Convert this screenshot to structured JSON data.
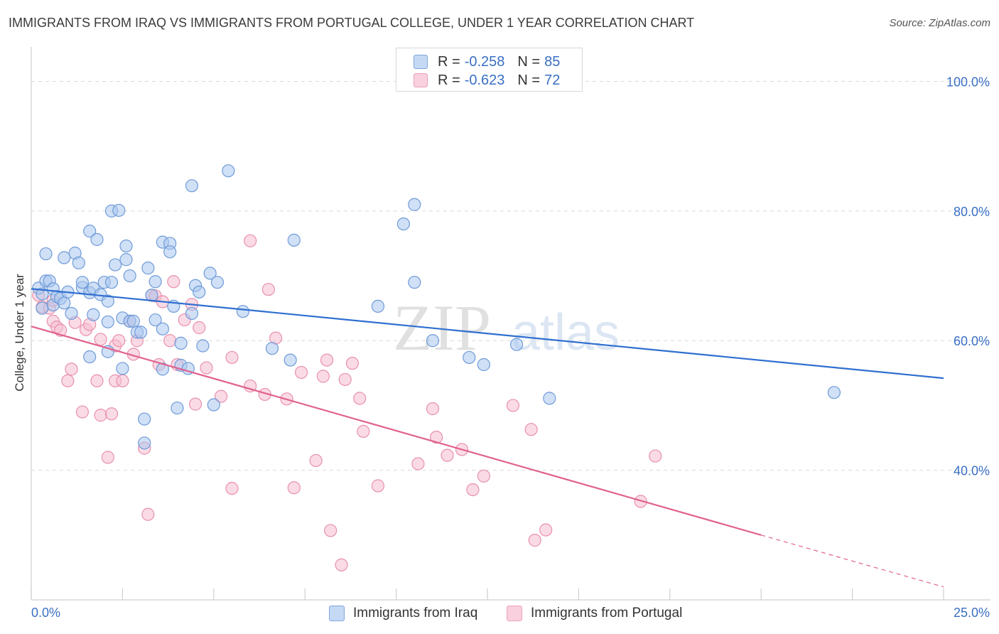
{
  "title": "IMMIGRANTS FROM IRAQ VS IMMIGRANTS FROM PORTUGAL COLLEGE, UNDER 1 YEAR CORRELATION CHART",
  "source": "Source: ZipAtlas.com",
  "watermark": {
    "zip": "ZIP",
    "atlas": "atlas"
  },
  "legend_top": [
    {
      "r_label": "R =",
      "r_value": "-0.258",
      "n_label": "N =",
      "n_value": "85"
    },
    {
      "r_label": "R =",
      "r_value": "-0.623",
      "n_label": "N =",
      "n_value": "72"
    }
  ],
  "colors": {
    "iraq_fill": "#a9c6ef",
    "iraq_stroke": "#6f9bd8",
    "iraq_line": "#2f6fd0",
    "portugal_fill": "#f5bdd0",
    "portugal_stroke": "#e890ad",
    "portugal_line": "#e0628f",
    "tick_label": "#3a6fc4",
    "grid": "#d9d9d9"
  },
  "chart_data": {
    "type": "scatter",
    "title": "IMMIGRANTS FROM IRAQ VS IMMIGRANTS FROM PORTUGAL COLLEGE, UNDER 1 YEAR CORRELATION CHART",
    "xlabel": "",
    "ylabel": "College, Under 1 year",
    "xlim": [
      0,
      25
    ],
    "ylim": [
      20,
      104
    ],
    "x_tick_labels": [
      "0.0%",
      "25.0%"
    ],
    "y_ticks": [
      40,
      60,
      80,
      100
    ],
    "y_tick_labels": [
      "40.0%",
      "60.0%",
      "80.0%",
      "100.0%"
    ],
    "grid": true,
    "legend_position": "top-center",
    "series": [
      {
        "name": "Immigrants from Iraq",
        "r": -0.258,
        "n": 85,
        "trend": {
          "x": [
            0,
            25
          ],
          "y": [
            68.0,
            54.2
          ]
        },
        "points": [
          [
            0.2,
            68.1
          ],
          [
            0.3,
            67.2
          ],
          [
            0.3,
            65.0
          ],
          [
            0.4,
            69.2
          ],
          [
            0.4,
            73.4
          ],
          [
            0.5,
            69.2
          ],
          [
            0.6,
            68.0
          ],
          [
            0.6,
            65.5
          ],
          [
            0.7,
            66.8
          ],
          [
            0.8,
            66.5
          ],
          [
            0.9,
            65.8
          ],
          [
            0.9,
            72.8
          ],
          [
            1.0,
            67.5
          ],
          [
            1.1,
            64.2
          ],
          [
            1.2,
            73.5
          ],
          [
            1.3,
            72.0
          ],
          [
            1.4,
            68.2
          ],
          [
            1.4,
            69.0
          ],
          [
            1.6,
            67.4
          ],
          [
            1.6,
            57.5
          ],
          [
            1.6,
            76.9
          ],
          [
            1.7,
            64.0
          ],
          [
            1.7,
            68.1
          ],
          [
            1.8,
            75.6
          ],
          [
            1.9,
            67.1
          ],
          [
            2.0,
            69.0
          ],
          [
            2.1,
            58.3
          ],
          [
            2.1,
            66.1
          ],
          [
            2.1,
            62.9
          ],
          [
            2.2,
            69.0
          ],
          [
            2.2,
            80.0
          ],
          [
            2.3,
            71.7
          ],
          [
            2.4,
            80.1
          ],
          [
            2.5,
            63.5
          ],
          [
            2.5,
            55.7
          ],
          [
            2.6,
            72.5
          ],
          [
            2.6,
            74.6
          ],
          [
            2.7,
            63.0
          ],
          [
            2.7,
            70.0
          ],
          [
            2.8,
            63.0
          ],
          [
            2.9,
            61.3
          ],
          [
            3.0,
            61.3
          ],
          [
            3.1,
            47.9
          ],
          [
            3.1,
            44.2
          ],
          [
            3.2,
            71.2
          ],
          [
            3.3,
            67.0
          ],
          [
            3.4,
            69.1
          ],
          [
            3.4,
            63.2
          ],
          [
            3.6,
            61.8
          ],
          [
            3.6,
            55.6
          ],
          [
            3.6,
            75.2
          ],
          [
            3.8,
            75.0
          ],
          [
            3.8,
            73.7
          ],
          [
            3.9,
            65.3
          ],
          [
            4.0,
            49.6
          ],
          [
            4.1,
            59.6
          ],
          [
            4.1,
            56.2
          ],
          [
            4.3,
            55.7
          ],
          [
            4.4,
            64.2
          ],
          [
            4.4,
            83.9
          ],
          [
            4.5,
            68.5
          ],
          [
            4.6,
            67.5
          ],
          [
            4.7,
            59.2
          ],
          [
            4.9,
            70.4
          ],
          [
            5.0,
            50.1
          ],
          [
            5.1,
            69.0
          ],
          [
            5.4,
            86.2
          ],
          [
            5.8,
            64.5
          ],
          [
            6.6,
            58.8
          ],
          [
            7.1,
            57.0
          ],
          [
            7.2,
            75.5
          ],
          [
            9.5,
            65.3
          ],
          [
            10.2,
            78.0
          ],
          [
            10.5,
            81.0
          ],
          [
            10.5,
            69.0
          ],
          [
            11.0,
            60.0
          ],
          [
            12.0,
            57.4
          ],
          [
            12.4,
            56.3
          ],
          [
            13.3,
            59.4
          ],
          [
            14.2,
            51.1
          ],
          [
            22.0,
            52.0
          ]
        ]
      },
      {
        "name": "Immigrants from Portugal",
        "r": -0.623,
        "n": 72,
        "trend": {
          "x": [
            0,
            20
          ],
          "y": [
            62.2,
            30.0
          ]
        },
        "trend_extension": {
          "x": [
            20,
            25
          ],
          "y": [
            30.0,
            22.0
          ]
        },
        "points": [
          [
            0.2,
            67.0
          ],
          [
            0.3,
            65.2
          ],
          [
            0.5,
            65.0
          ],
          [
            0.6,
            66.2
          ],
          [
            0.6,
            63.0
          ],
          [
            0.7,
            62.1
          ],
          [
            0.8,
            61.6
          ],
          [
            1.0,
            53.8
          ],
          [
            1.1,
            55.6
          ],
          [
            1.2,
            62.8
          ],
          [
            1.4,
            49.0
          ],
          [
            1.5,
            61.7
          ],
          [
            1.6,
            62.5
          ],
          [
            1.8,
            53.8
          ],
          [
            1.9,
            60.2
          ],
          [
            1.9,
            48.5
          ],
          [
            2.1,
            42.0
          ],
          [
            2.2,
            48.7
          ],
          [
            2.3,
            53.8
          ],
          [
            2.3,
            59.2
          ],
          [
            2.4,
            60.0
          ],
          [
            2.5,
            53.8
          ],
          [
            2.7,
            63.0
          ],
          [
            2.8,
            57.9
          ],
          [
            2.9,
            60.0
          ],
          [
            3.1,
            43.4
          ],
          [
            3.2,
            33.2
          ],
          [
            3.3,
            67.0
          ],
          [
            3.4,
            66.9
          ],
          [
            3.5,
            56.3
          ],
          [
            3.6,
            66.0
          ],
          [
            3.8,
            60.0
          ],
          [
            3.9,
            69.1
          ],
          [
            4.0,
            56.3
          ],
          [
            4.2,
            63.2
          ],
          [
            4.4,
            65.6
          ],
          [
            4.5,
            50.2
          ],
          [
            4.6,
            62.0
          ],
          [
            4.8,
            55.8
          ],
          [
            5.2,
            51.4
          ],
          [
            5.5,
            57.4
          ],
          [
            5.5,
            37.2
          ],
          [
            6.0,
            75.4
          ],
          [
            6.0,
            53.0
          ],
          [
            6.4,
            51.7
          ],
          [
            6.5,
            67.9
          ],
          [
            6.7,
            60.4
          ],
          [
            7.0,
            51.0
          ],
          [
            7.2,
            37.3
          ],
          [
            7.4,
            55.1
          ],
          [
            7.8,
            41.5
          ],
          [
            8.0,
            54.5
          ],
          [
            8.1,
            57.0
          ],
          [
            8.2,
            30.7
          ],
          [
            8.5,
            25.4
          ],
          [
            8.6,
            54.0
          ],
          [
            8.8,
            56.5
          ],
          [
            9.0,
            51.1
          ],
          [
            9.1,
            46.0
          ],
          [
            9.5,
            37.6
          ],
          [
            10.6,
            41.0
          ],
          [
            11.0,
            49.5
          ],
          [
            11.1,
            45.1
          ],
          [
            11.4,
            42.3
          ],
          [
            11.8,
            43.2
          ],
          [
            12.1,
            37.0
          ],
          [
            12.4,
            39.1
          ],
          [
            13.2,
            50.0
          ],
          [
            13.7,
            46.3
          ],
          [
            13.8,
            29.2
          ],
          [
            14.1,
            30.8
          ],
          [
            16.7,
            35.2
          ],
          [
            17.1,
            42.2
          ]
        ]
      }
    ]
  },
  "legend_bottom": [
    "Immigrants from Iraq",
    "Immigrants from Portugal"
  ]
}
